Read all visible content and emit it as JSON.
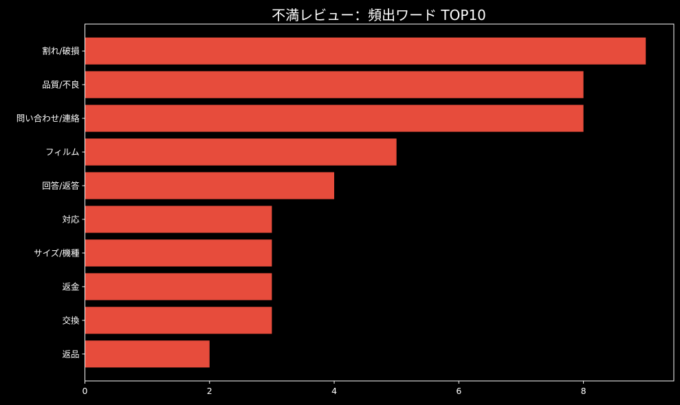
{
  "chart_data": {
    "type": "bar",
    "orientation": "horizontal",
    "title": "不満レビュー：頻出ワード TOP10",
    "xlabel": "",
    "ylabel": "",
    "categories": [
      "割れ/破損",
      "品質/不良",
      "問い合わせ/連絡",
      "フィルム",
      "回答/返答",
      "対応",
      "サイズ/機種",
      "返金",
      "交換",
      "返品"
    ],
    "values": [
      9,
      8,
      8,
      5,
      4,
      3,
      3,
      3,
      3,
      2
    ],
    "xlim": [
      0,
      9.45
    ],
    "xticks": [
      0,
      2,
      4,
      6,
      8
    ],
    "grid": false,
    "legend": "none",
    "bar_color": "#e74c3c",
    "background_color": "#000000",
    "text_color": "#ffffff"
  }
}
